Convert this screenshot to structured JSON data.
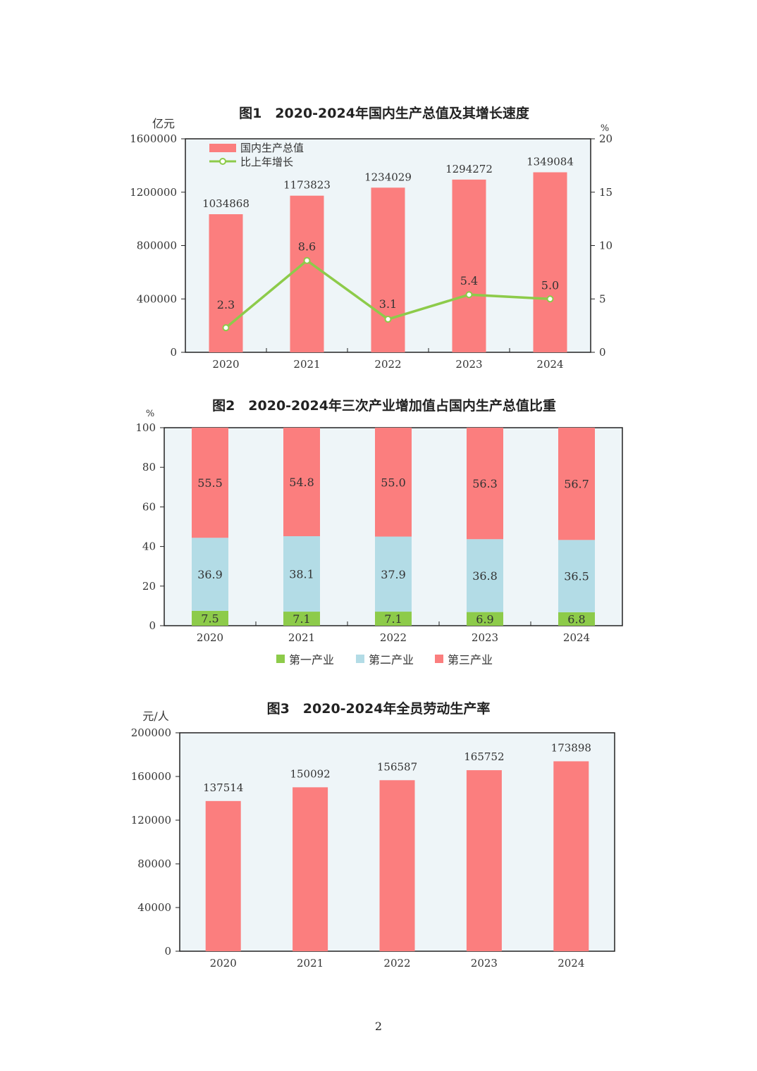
{
  "page_number": "2",
  "colors": {
    "bar": "#fb7e7e",
    "line": "#8dcb4a",
    "primary": "#8dcb4a",
    "secondary": "#b3dce6",
    "tertiary": "#fb7e7e",
    "plot_bg": "#eef5f8"
  },
  "chart_data": [
    {
      "type": "bar+line",
      "title": "图1　2020-2024年国内生产总值及其增长速度",
      "ylabel": "亿元",
      "y2label": "%",
      "categories": [
        "2020",
        "2021",
        "2022",
        "2023",
        "2024"
      ],
      "ylim": [
        0,
        1600000
      ],
      "yticks": [
        0,
        400000,
        800000,
        1200000,
        1600000
      ],
      "y2lim": [
        0,
        20
      ],
      "y2ticks": [
        0,
        5,
        10,
        15,
        20
      ],
      "series": [
        {
          "name": "国内生产总值",
          "type": "bar",
          "values": [
            1034868,
            1173823,
            1234029,
            1294272,
            1349084
          ],
          "labels": [
            "1034868",
            "1173823",
            "1234029",
            "1294272",
            "1349084"
          ]
        },
        {
          "name": "比上年增长",
          "type": "line",
          "axis": "right",
          "values": [
            2.3,
            8.6,
            3.1,
            5.4,
            5.0
          ],
          "labels": [
            "2.3",
            "8.6",
            "3.1",
            "5.4",
            "5.0"
          ]
        }
      ],
      "legend": "top-left"
    },
    {
      "type": "stacked-bar",
      "title": "图2　2020-2024年三次产业增加值占国内生产总值比重",
      "ylabel": "%",
      "categories": [
        "2020",
        "2021",
        "2022",
        "2023",
        "2024"
      ],
      "ylim": [
        0,
        100
      ],
      "yticks": [
        0,
        20,
        40,
        60,
        80,
        100
      ],
      "series": [
        {
          "name": "第一产业",
          "values": [
            7.5,
            7.1,
            7.1,
            6.9,
            6.8
          ],
          "labels": [
            "7.5",
            "7.1",
            "7.1",
            "6.9",
            "6.8"
          ]
        },
        {
          "name": "第二产业",
          "values": [
            36.9,
            38.1,
            37.9,
            36.8,
            36.5
          ],
          "labels": [
            "36.9",
            "38.1",
            "37.9",
            "36.8",
            "36.5"
          ]
        },
        {
          "name": "第三产业",
          "values": [
            55.5,
            54.8,
            55.0,
            56.3,
            56.7
          ],
          "labels": [
            "55.5",
            "54.8",
            "55.0",
            "56.3",
            "56.7"
          ]
        }
      ],
      "legend": "bottom"
    },
    {
      "type": "bar",
      "title": "图3　2020-2024年全员劳动生产率",
      "ylabel": "元/人",
      "categories": [
        "2020",
        "2021",
        "2022",
        "2023",
        "2024"
      ],
      "ylim": [
        0,
        200000
      ],
      "yticks": [
        0,
        40000,
        80000,
        120000,
        160000,
        200000
      ],
      "values": [
        137514,
        150092,
        156587,
        165752,
        173898
      ],
      "labels": [
        "137514",
        "150092",
        "156587",
        "165752",
        "173898"
      ]
    }
  ]
}
